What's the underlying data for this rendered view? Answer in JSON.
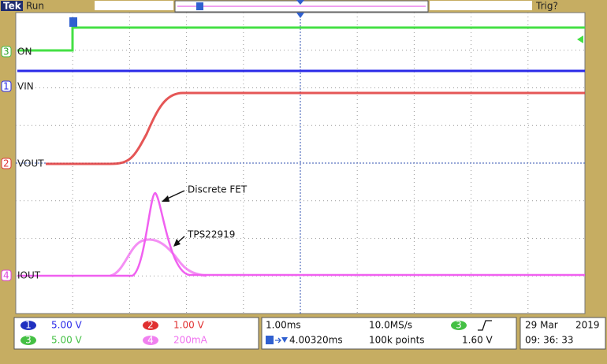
{
  "header": {
    "brand": "Tek",
    "status": "Run",
    "trigger_status": "Trig?"
  },
  "traces": [
    {
      "number": "3",
      "label": "ON"
    },
    {
      "number": "1",
      "label": "VIN"
    },
    {
      "number": "2",
      "label": "VOUT"
    },
    {
      "number": "4",
      "label": "IOUT"
    }
  ],
  "annotations": [
    "Discrete FET",
    "TPS22919"
  ],
  "channel_scales": [
    {
      "number": "1",
      "scale": "5.00 V"
    },
    {
      "number": "2",
      "scale": "1.00 V"
    },
    {
      "number": "3",
      "scale": "5.00 V"
    },
    {
      "number": "4",
      "scale": "200mA"
    }
  ],
  "timebase": {
    "scale": "1.00ms",
    "sample_rate": "10.0MS/s",
    "trigger_channel": "3",
    "trigger_delay": "4.00320ms",
    "record_length": "100k points",
    "trigger_level": "1.60 V"
  },
  "timestamp": {
    "date": "29 Mar",
    "year": "2019",
    "time": "09: 36: 33"
  }
}
